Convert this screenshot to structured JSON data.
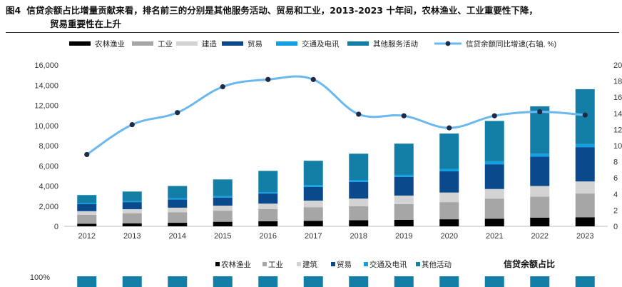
{
  "figure": {
    "label": "图4",
    "title_line1": "信贷余额占比增量贡献来看，排名前三的分别是其他服务活动、贸易和工业，2013-2023 十年间，农林渔业、工业重要性下降，",
    "title_line2": "贸易重要性在上升"
  },
  "colors": {
    "农林渔业": "#000000",
    "工业": "#a6a6a6",
    "建造": "#d3d3d3",
    "贸易": "#0a4a8c",
    "交通及电讯": "#13a0e3",
    "其他服务活动": "#137fa6",
    "line": "#6ab8f0",
    "marker": "#1f2a44"
  },
  "chart_data": [
    {
      "type": "bar",
      "stacked": true,
      "categories": [
        "2012",
        "2013",
        "2014",
        "2015",
        "2016",
        "2017",
        "2018",
        "2019",
        "2020",
        "2021",
        "2022",
        "2023"
      ],
      "ylim": [
        0,
        16000
      ],
      "y_ticks": [
        "0",
        "2,000",
        "4,000",
        "6,000",
        "8,000",
        "10,000",
        "12,000",
        "14,000",
        "16,000"
      ],
      "y2lim": [
        0,
        20
      ],
      "y2_ticks": [
        "0",
        "2",
        "4",
        "6",
        "8",
        "10",
        "12",
        "14",
        "16",
        "18",
        "20"
      ],
      "grid": false,
      "legend_position": "top",
      "series": [
        {
          "name": "农林渔业",
          "values": [
            250,
            300,
            350,
            450,
            500,
            550,
            600,
            650,
            700,
            750,
            850,
            900
          ]
        },
        {
          "name": "工业",
          "values": [
            900,
            1000,
            1050,
            1100,
            1200,
            1350,
            1400,
            1550,
            1700,
            2000,
            2100,
            2350
          ]
        },
        {
          "name": "建造",
          "values": [
            350,
            400,
            450,
            500,
            550,
            650,
            750,
            850,
            950,
            950,
            1050,
            1200
          ]
        },
        {
          "name": "贸易",
          "values": [
            700,
            700,
            800,
            800,
            1000,
            1350,
            1650,
            1850,
            2100,
            2450,
            2900,
            3400
          ]
        },
        {
          "name": "交通及电讯",
          "values": [
            100,
            100,
            150,
            150,
            150,
            200,
            200,
            200,
            250,
            300,
            300,
            300
          ]
        },
        {
          "name": "其他服务活动",
          "values": [
            800,
            950,
            1200,
            1650,
            2100,
            2400,
            2600,
            3100,
            3500,
            4000,
            4700,
            5450
          ]
        }
      ],
      "line": {
        "name": "信贷余额同比增速(右轴, %)",
        "axis": "right",
        "values": [
          8.9,
          12.6,
          14.1,
          17.3,
          18.2,
          18.2,
          13.9,
          13.7,
          12.2,
          13.7,
          14.2,
          13.8
        ]
      }
    },
    {
      "type": "bar",
      "stacked": true,
      "normalized": true,
      "title": "信贷余额占比",
      "y_ticks": [
        "100%"
      ],
      "legend": [
        "农林渔业",
        "工业",
        "建筑",
        "贸易",
        "交通及电讯",
        "其他活动"
      ]
    }
  ]
}
